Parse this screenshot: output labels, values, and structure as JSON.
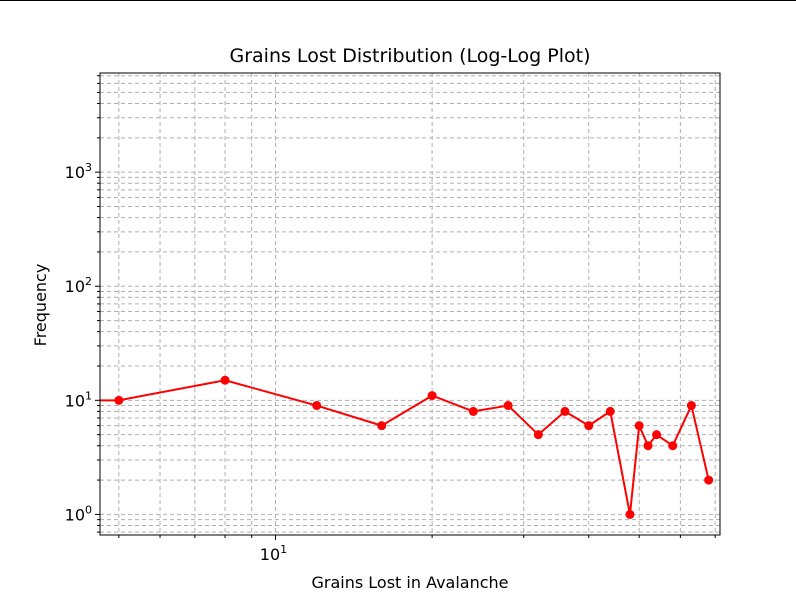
{
  "chart_data": {
    "type": "line",
    "title": "Grains Lost Distribution (Log-Log Plot)",
    "xlabel": "Grains Lost in Avalanche",
    "ylabel": "Frequency",
    "x_scale": "log",
    "y_scale": "log",
    "xlim": [
      4.6,
      71.5
    ],
    "ylim": [
      0.66,
      7400
    ],
    "x_major_tick_labels": [
      {
        "value": 10,
        "base": "10",
        "exp": "1"
      }
    ],
    "y_major_tick_labels": [
      {
        "value": 1,
        "base": "10",
        "exp": "0"
      },
      {
        "value": 10,
        "base": "10",
        "exp": "1"
      },
      {
        "value": 100,
        "base": "10",
        "exp": "2"
      },
      {
        "value": 1000,
        "base": "10",
        "exp": "3"
      }
    ],
    "grid": true,
    "series": [
      {
        "color": "#ff0000",
        "marker": "circle",
        "x": [
          4.6,
          5,
          8,
          12,
          16,
          20,
          24,
          28,
          32,
          36,
          40,
          44,
          48,
          50,
          52,
          54,
          58,
          63,
          68
        ],
        "y": [
          10,
          10,
          15,
          9,
          6,
          11,
          8,
          9,
          5,
          8,
          6,
          8,
          1,
          6,
          4,
          5,
          4,
          9,
          2
        ]
      }
    ]
  }
}
